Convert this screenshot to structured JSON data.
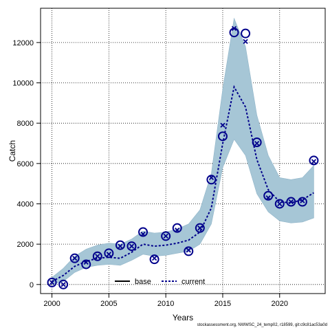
{
  "chart_data": {
    "type": "line",
    "title": "",
    "xlabel": "Years",
    "ylabel": "Catch",
    "xlim": [
      1999,
      2024
    ],
    "ylim": [
      -450,
      13700
    ],
    "xticks": [
      2000,
      2005,
      2010,
      2015,
      2020
    ],
    "yticks": [
      0,
      2000,
      4000,
      6000,
      8000,
      10000,
      12000
    ],
    "grid": true,
    "legend": {
      "placement": "bottom-center",
      "entries": [
        "base",
        "current"
      ]
    },
    "colors": {
      "band": "#a6c6d6",
      "band_edge": "#8fb4c8",
      "fit": "#00008b",
      "obs": "#00008b"
    },
    "series": [
      {
        "name": "current",
        "kind": "fitted",
        "x": [
          2000,
          2001,
          2002,
          2003,
          2004,
          2005,
          2006,
          2007,
          2008,
          2009,
          2010,
          2011,
          2012,
          2013,
          2014,
          2015,
          2016,
          2017,
          2018,
          2019,
          2020,
          2021,
          2022,
          2023
        ],
        "values": [
          150,
          450,
          900,
          1150,
          1300,
          1350,
          1300,
          1600,
          2000,
          1900,
          1950,
          2050,
          2200,
          2600,
          3800,
          7000,
          9800,
          8800,
          6200,
          4700,
          4100,
          4050,
          4200,
          4550
        ],
        "lower": [
          0,
          150,
          600,
          850,
          950,
          1000,
          950,
          1200,
          1500,
          1400,
          1450,
          1550,
          1650,
          2000,
          3000,
          5800,
          7200,
          6400,
          4500,
          3600,
          3150,
          3050,
          3100,
          3300
        ],
        "upper": [
          350,
          800,
          1400,
          1750,
          1950,
          2050,
          2000,
          2250,
          2650,
          2550,
          2600,
          2750,
          3000,
          3700,
          5500,
          9700,
          13200,
          11800,
          8400,
          6400,
          5300,
          5200,
          5300,
          5900
        ]
      },
      {
        "name": "",
        "kind": "observed",
        "x": [
          2000,
          2001,
          2002,
          2003,
          2004,
          2005,
          2006,
          2007,
          2008,
          2009,
          2010,
          2011,
          2012,
          2013,
          2014,
          2015,
          2016,
          2017,
          2018,
          2019,
          2020,
          2021,
          2022,
          2023
        ],
        "values": [
          100,
          0,
          1300,
          1000,
          1400,
          1550,
          1950,
          1900,
          2600,
          1250,
          2400,
          2800,
          1650,
          2800,
          5200,
          7350,
          12500,
          12450,
          7050,
          4400,
          4000,
          4100,
          4100,
          6150
        ]
      },
      {
        "name": "",
        "kind": "predicted",
        "x": [
          2000,
          2001,
          2002,
          2003,
          2004,
          2005,
          2006,
          2007,
          2008,
          2009,
          2010,
          2011,
          2012,
          2013,
          2014,
          2015,
          2016,
          2017,
          2018,
          2019,
          2020,
          2021,
          2022,
          2023
        ],
        "values": [
          100,
          0,
          1300,
          1100,
          1400,
          1500,
          1900,
          1900,
          2500,
          1300,
          2400,
          2700,
          1700,
          2800,
          5300,
          7900,
          12700,
          12050,
          7000,
          4300,
          4000,
          4100,
          4150,
          6100
        ]
      }
    ]
  },
  "footer": "stockassessment.org, NWWSC_24_temp02, r18599, git:c9c81ac53a0d"
}
